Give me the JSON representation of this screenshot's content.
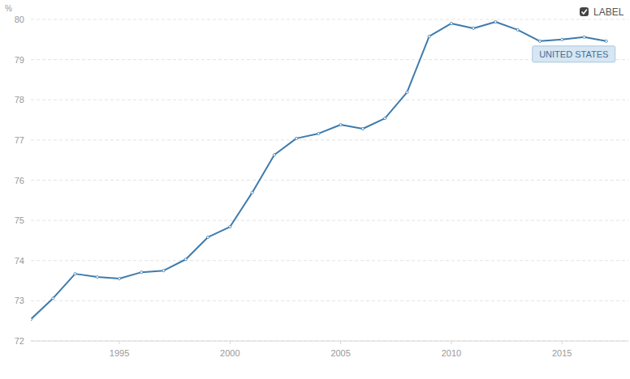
{
  "chart_data": {
    "type": "line",
    "y_label": "%",
    "checkbox_label": "LABEL",
    "x": [
      1991,
      1992,
      1993,
      1994,
      1995,
      1996,
      1997,
      1998,
      1999,
      2000,
      2001,
      2002,
      2003,
      2004,
      2005,
      2006,
      2007,
      2008,
      2009,
      2010,
      2011,
      2012,
      2013,
      2014,
      2015,
      2016,
      2017
    ],
    "series": [
      {
        "name": "UNITED STATES",
        "color": "#3d7bae",
        "marker": "dot",
        "values": [
          72.54,
          73.06,
          73.67,
          73.59,
          73.55,
          73.71,
          73.75,
          74.03,
          74.58,
          74.84,
          75.69,
          76.63,
          77.04,
          77.16,
          77.38,
          77.28,
          77.54,
          78.19,
          79.58,
          79.9,
          79.78,
          79.94,
          79.74,
          79.46,
          79.5,
          79.56,
          79.46
        ]
      }
    ],
    "xlim": [
      1991,
      2018
    ],
    "xticks": [
      1995,
      2000,
      2005,
      2010,
      2015
    ],
    "ylim": [
      72,
      80
    ],
    "yticks": [
      72,
      73,
      74,
      75,
      76,
      77,
      78,
      79,
      80
    ],
    "grid": true
  }
}
